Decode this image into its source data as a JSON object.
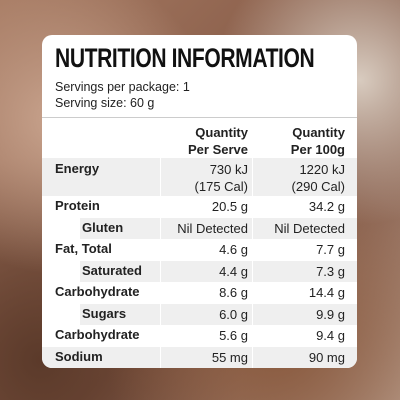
{
  "header": {
    "title": "NUTRITION INFORMATION",
    "servings": "Servings per package: 1",
    "serving_size": "Serving size: 60 g"
  },
  "table": {
    "columns": [
      [
        "Quantity",
        "Per Serve"
      ],
      [
        "Quantity",
        "Per 100g"
      ]
    ],
    "rows": [
      {
        "label": "Energy",
        "cells": [
          [
            "730 kJ",
            "(175 Cal)"
          ],
          [
            "1220 kJ",
            "(290 Cal)"
          ]
        ],
        "indent": false
      },
      {
        "label": "Protein",
        "cells": [
          [
            "20.5 g"
          ],
          [
            "34.2 g"
          ]
        ],
        "indent": false
      },
      {
        "label": "Gluten",
        "cells": [
          [
            "Nil Detected"
          ],
          [
            "Nil Detected"
          ]
        ],
        "indent": true
      },
      {
        "label": "Fat, Total",
        "cells": [
          [
            "4.6 g"
          ],
          [
            "7.7 g"
          ]
        ],
        "indent": false
      },
      {
        "label": "Saturated",
        "cells": [
          [
            "4.4 g"
          ],
          [
            "7.3 g"
          ]
        ],
        "indent": true
      },
      {
        "label": "Carbohydrate",
        "cells": [
          [
            "8.6 g"
          ],
          [
            "14.4 g"
          ]
        ],
        "indent": false
      },
      {
        "label": "Sugars",
        "cells": [
          [
            "6.0 g"
          ],
          [
            "9.9 g"
          ]
        ],
        "indent": true
      },
      {
        "label": "Carbohydrate",
        "cells": [
          [
            "5.6 g"
          ],
          [
            "9.4 g"
          ]
        ],
        "indent": false
      },
      {
        "label": "Sodium",
        "cells": [
          [
            "55 mg"
          ],
          [
            "90 mg"
          ]
        ],
        "indent": false
      }
    ]
  }
}
